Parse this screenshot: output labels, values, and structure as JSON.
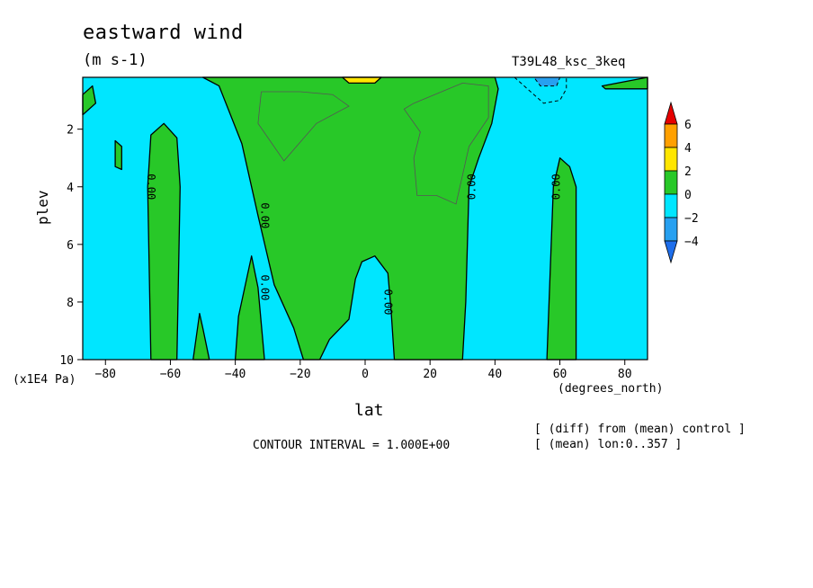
{
  "title": "eastward wind",
  "units": "(m s-1)",
  "run_label": "T39L48_ksc_3keq",
  "x_units": "(degrees_north)",
  "y_units": "(x1E4 Pa)",
  "contour_interval_text": "CONTOUR INTERVAL = 1.000E+00",
  "notes": [
    "[ (diff) from (mean) control ]",
    "[ (mean) lon:0..357 ]"
  ],
  "chart_data": {
    "type": "heatmap",
    "title": "eastward wind",
    "subtitle": "(m s-1)",
    "xlabel": "lat",
    "ylabel": "plev",
    "x_unit": "(degrees_north)",
    "y_unit": "(x1E4 Pa)",
    "xlim": [
      -87,
      87
    ],
    "ylim": [
      10,
      0.2
    ],
    "x_ticks": [
      -80,
      -60,
      -40,
      -20,
      0,
      20,
      40,
      60,
      80
    ],
    "y_ticks": [
      2,
      4,
      6,
      8,
      10
    ],
    "contour_interval": 1.0,
    "contour_labels": [
      {
        "text": "0.00",
        "lat": -67,
        "plev": 4.0
      },
      {
        "text": "0.00",
        "lat": -32,
        "plev": 5.0
      },
      {
        "text": "0.00",
        "lat": -32,
        "plev": 7.5
      },
      {
        "text": "0.00",
        "lat": 6,
        "plev": 8.0
      },
      {
        "text": "0.00",
        "lat": 34,
        "plev": 4.0
      },
      {
        "text": "0.00",
        "lat": 60,
        "plev": 4.0
      }
    ],
    "colorbar": {
      "levels": [
        -4,
        -2,
        0,
        2,
        4,
        6
      ],
      "colors": [
        "#1e6eeb",
        "#27a0f0",
        "#00e6ff",
        "#28c828",
        "#ffe600",
        "#ffa000",
        "#e60000"
      ]
    },
    "regions": [
      {
        "sign": "positive",
        "color": "#28c828",
        "polygon": [
          [
            -87,
            0.8
          ],
          [
            -84,
            0.5
          ],
          [
            -83,
            1.1
          ],
          [
            -87,
            1.5
          ]
        ]
      },
      {
        "sign": "positive",
        "color": "#28c828",
        "polygon": [
          [
            -77,
            2.4
          ],
          [
            -75,
            2.6
          ],
          [
            -75,
            3.4
          ],
          [
            -77,
            3.3
          ]
        ]
      },
      {
        "sign": "positive",
        "color": "#28c828",
        "polygon": [
          [
            -66,
            10
          ],
          [
            -67,
            4
          ],
          [
            -66,
            2.2
          ],
          [
            -62,
            1.8
          ],
          [
            -58,
            2.3
          ],
          [
            -57,
            4
          ],
          [
            -58,
            10
          ]
        ]
      },
      {
        "sign": "positive",
        "color": "#28c828",
        "polygon": [
          [
            -53,
            10
          ],
          [
            -51,
            8.4
          ],
          [
            -50,
            8.9
          ],
          [
            -48,
            10
          ]
        ]
      },
      {
        "sign": "positive",
        "color": "#28c828",
        "polygon": [
          [
            -40,
            10
          ],
          [
            -39,
            8.5
          ],
          [
            -35,
            6.4
          ],
          [
            -33,
            7.5
          ],
          [
            -31,
            10
          ]
        ]
      },
      {
        "sign": "positive",
        "color": "#28c828",
        "polygon": [
          [
            -50,
            0.2
          ],
          [
            -45,
            0.5
          ],
          [
            -38,
            2.5
          ],
          [
            -33,
            5
          ],
          [
            -28,
            7.4
          ],
          [
            -22,
            8.9
          ],
          [
            -19,
            10
          ],
          [
            -14,
            10
          ],
          [
            -11,
            9.3
          ],
          [
            -5,
            8.6
          ],
          [
            -3,
            7.2
          ],
          [
            -1,
            6.6
          ],
          [
            3,
            6.4
          ],
          [
            7,
            7
          ],
          [
            8,
            8.3
          ],
          [
            9,
            10
          ],
          [
            30,
            10
          ],
          [
            31,
            8
          ],
          [
            32,
            4
          ],
          [
            35,
            3.0
          ],
          [
            39,
            1.8
          ],
          [
            41,
            0.6
          ],
          [
            40,
            0.2
          ]
        ]
      },
      {
        "sign": "positive",
        "color": "#28c828",
        "polygon": [
          [
            56,
            10
          ],
          [
            58,
            4
          ],
          [
            60,
            3.0
          ],
          [
            63,
            3.3
          ],
          [
            65,
            4
          ],
          [
            65,
            10
          ]
        ]
      },
      {
        "sign": "positive",
        "color": "#28c828",
        "polygon": [
          [
            73,
            0.5
          ],
          [
            87,
            0.2
          ],
          [
            87,
            0.6
          ],
          [
            74,
            0.6
          ]
        ]
      },
      {
        "sign": "positive",
        "color": "#ffe600",
        "polygon": [
          [
            -7,
            0.2
          ],
          [
            5,
            0.2
          ],
          [
            3,
            0.4
          ],
          [
            -5,
            0.4
          ]
        ]
      },
      {
        "sign": "negative",
        "color": "#27a0f0",
        "polygon": [
          [
            52,
            0.2
          ],
          [
            60,
            0.2
          ],
          [
            59,
            0.5
          ],
          [
            54,
            0.5
          ]
        ]
      }
    ]
  }
}
